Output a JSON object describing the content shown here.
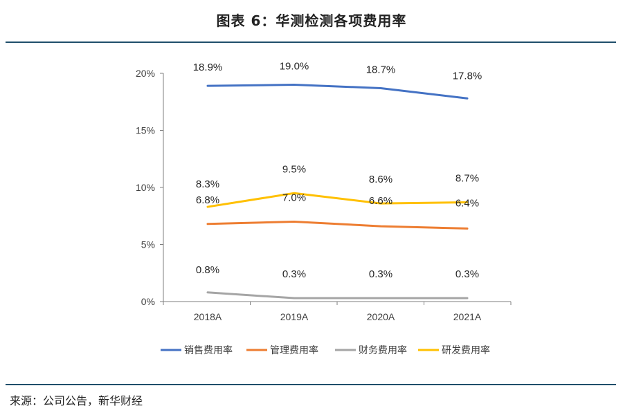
{
  "figure_title": "图表 6：华测检测各项费用率",
  "source_note": "来源：公司公告，新华财经",
  "chart_data": {
    "type": "line",
    "title": "图表 6：华测检测各项费用率",
    "categories": [
      "2018A",
      "2019A",
      "2020A",
      "2021A"
    ],
    "ylim": [
      0,
      20
    ],
    "yticks": [
      0,
      5,
      10,
      15,
      20
    ],
    "ytick_labels": [
      "0%",
      "5%",
      "10%",
      "15%",
      "20%"
    ],
    "xlabel": "",
    "ylabel": "",
    "grid": false,
    "legend_position": "bottom",
    "series": [
      {
        "name": "销售费用率",
        "color": "#4472c4",
        "values": [
          18.9,
          19.0,
          18.7,
          17.8
        ],
        "labels": [
          "18.9%",
          "19.0%",
          "18.7%",
          "17.8%"
        ]
      },
      {
        "name": "管理费用率",
        "color": "#ed7d31",
        "values": [
          6.8,
          7.0,
          6.6,
          6.4
        ],
        "labels": [
          "6.8%",
          "7.0%",
          "6.6%",
          "6.4%"
        ]
      },
      {
        "name": "财务费用率",
        "color": "#a5a5a5",
        "values": [
          0.8,
          0.3,
          0.3,
          0.3
        ],
        "labels": [
          "0.8%",
          "0.3%",
          "0.3%",
          "0.3%"
        ]
      },
      {
        "name": "研发费用率",
        "color": "#ffc000",
        "values": [
          8.3,
          9.5,
          8.6,
          8.7
        ],
        "labels": [
          "8.3%",
          "9.5%",
          "8.6%",
          "8.7%"
        ]
      }
    ]
  }
}
